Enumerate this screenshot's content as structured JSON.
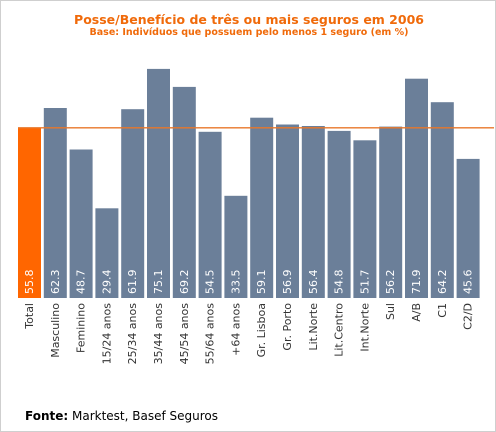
{
  "chart_data": {
    "type": "bar",
    "title": "Posse/Benefício de três ou mais seguros em 2006",
    "subtitle": "Base: Indivíduos que possuem pelo menos 1 seguro (em %)",
    "categories": [
      "Total",
      "Masculino",
      "Feminino",
      "15/24 anos",
      "25/34 anos",
      "35/44 anos",
      "45/54 anos",
      "55/64 anos",
      "+64 anos",
      "Gr. Lisboa",
      "Gr. Porto",
      "Lit.Norte",
      "Lit.Centro",
      "Int.Norte",
      "Sul",
      "A/B",
      "C1",
      "C2/D"
    ],
    "values": [
      55.8,
      62.3,
      48.7,
      29.4,
      61.9,
      75.1,
      69.2,
      54.5,
      33.5,
      59.1,
      56.9,
      56.4,
      54.8,
      51.7,
      56.2,
      71.9,
      64.2,
      45.6
    ],
    "value_labels": [
      "55.8",
      "62.3",
      "48.7",
      "29.4",
      "61.9",
      "75.1",
      "69.2",
      "54.5",
      "33.5",
      "59.1",
      "56.9",
      "56.4",
      "54.8",
      "51.7",
      "56.2",
      "71.9",
      "64.2",
      "45.6"
    ],
    "reference_line": 55.8,
    "ylim": [
      0,
      80
    ],
    "grid": false,
    "colors": {
      "bar": "#6b7f99",
      "highlight": "#ff6600",
      "reference_line": "#e8772a",
      "value_text": "#ffffff",
      "title": "#f06a0a"
    }
  },
  "source": {
    "label": "Fonte:",
    "text": "Marktest, Basef Seguros"
  }
}
